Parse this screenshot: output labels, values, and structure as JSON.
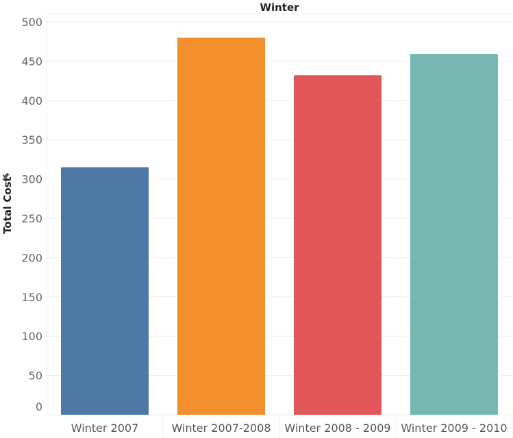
{
  "chart_data": {
    "type": "bar",
    "title": "Winter",
    "xlabel": "",
    "ylabel": "Total Cost",
    "categories": [
      "Winter 2007",
      "Winter 2007-2008",
      "Winter 2008 - 2009",
      "Winter 2009 - 2010"
    ],
    "values": [
      315,
      480,
      432,
      459
    ],
    "colors": [
      "#4e79a7",
      "#f28e2b",
      "#e15759",
      "#76b7b2"
    ],
    "ylim": [
      0,
      500
    ],
    "yticks": [
      0,
      50,
      100,
      150,
      200,
      250,
      300,
      350,
      400,
      450,
      500
    ],
    "grid": true,
    "legend": "none",
    "pin_icon": "pin-icon"
  }
}
